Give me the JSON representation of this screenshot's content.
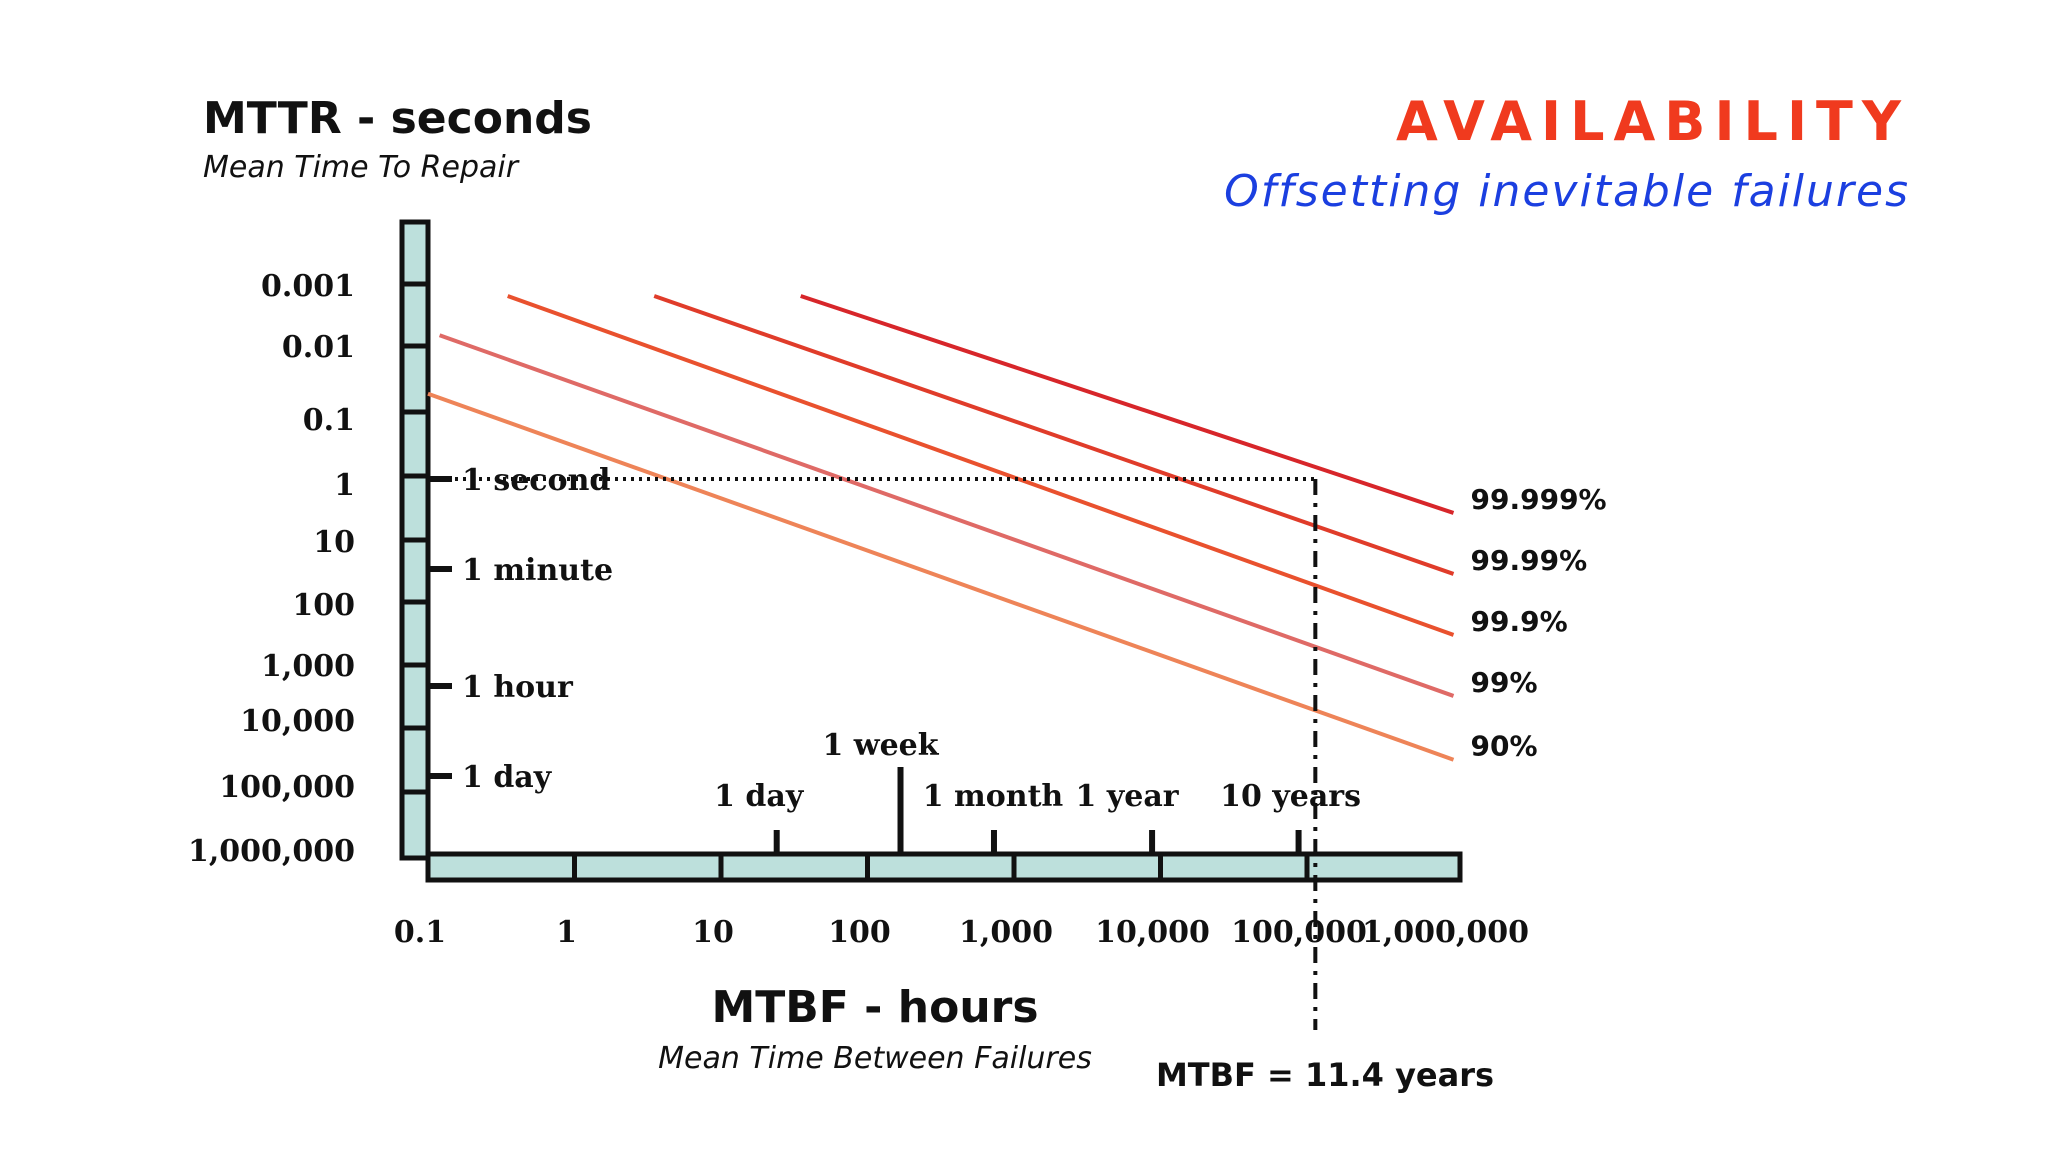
{
  "header": {
    "brand": "AVAILABILITY",
    "subtitle": "Offsetting inevitable failures",
    "brand_color": "#f03a1e",
    "subtitle_color": "#1b3fe0"
  },
  "chart_data": {
    "type": "line",
    "title": "AVAILABILITY",
    "ylabel": "MTTR - seconds",
    "ylabel_sub": "Mean Time To Repair",
    "xlabel": "MTBF - hours",
    "xlabel_sub": "Mean Time Between Failures",
    "x_scale": "log",
    "x_ticks": [
      {
        "value": 0.1,
        "label": "0.1"
      },
      {
        "value": 1,
        "label": "1"
      },
      {
        "value": 10,
        "label": "10"
      },
      {
        "value": 100,
        "label": "100"
      },
      {
        "value": 1000,
        "label": "1,000"
      },
      {
        "value": 10000,
        "label": "10,000"
      },
      {
        "value": 100000,
        "label": "100,000"
      },
      {
        "value": 1000000,
        "label": "1,000,000"
      }
    ],
    "y_scale": "log",
    "y_ticks": [
      {
        "value": 0.001,
        "label": "0.001"
      },
      {
        "value": 0.01,
        "label": "0.01"
      },
      {
        "value": 0.1,
        "label": "0.1"
      },
      {
        "value": 1,
        "label": "1"
      },
      {
        "value": 10,
        "label": "10"
      },
      {
        "value": 100,
        "label": "100"
      },
      {
        "value": 1000,
        "label": "1,000"
      },
      {
        "value": 10000,
        "label": "10,000"
      },
      {
        "value": 100000,
        "label": "100,000"
      },
      {
        "value": 1000000,
        "label": "1,000,000"
      }
    ],
    "y_time_markers": [
      {
        "value": 1,
        "label": "1 second"
      },
      {
        "value": 60,
        "label": "1 minute"
      },
      {
        "value": 3600,
        "label": "1 hour"
      },
      {
        "value": 86400,
        "label": "1 day"
      }
    ],
    "x_time_markers": [
      {
        "value": 24,
        "label": "1 day"
      },
      {
        "value": 168,
        "label": "1 week"
      },
      {
        "value": 730,
        "label": "1 month"
      },
      {
        "value": 8760,
        "label": "1 year"
      },
      {
        "value": 87600,
        "label": "10 years"
      }
    ],
    "series": [
      {
        "name": "99.999%",
        "color": "#d7262a",
        "x": [
          35,
          1000000
        ],
        "y": [
          0.001,
          3.6
        ]
      },
      {
        "name": "99.99%",
        "color": "#e03c2a",
        "x": [
          3.5,
          1000000
        ],
        "y": [
          0.001,
          36
        ]
      },
      {
        "name": "99.9%",
        "color": "#e9512e",
        "x": [
          0.35,
          1000000
        ],
        "y": [
          0.001,
          360
        ]
      },
      {
        "name": "99%",
        "color": "#df6a66",
        "x": [
          0.12,
          1000000
        ],
        "y": [
          0.0044,
          3600
        ]
      },
      {
        "name": "90%",
        "color": "#ee8458",
        "x": [
          0.1,
          1000000
        ],
        "y": [
          0.04,
          40000
        ]
      }
    ],
    "annotation": {
      "label": "MTBF = 11.4 years",
      "mtbf_hours": 100000,
      "mttr_seconds": 1
    }
  }
}
